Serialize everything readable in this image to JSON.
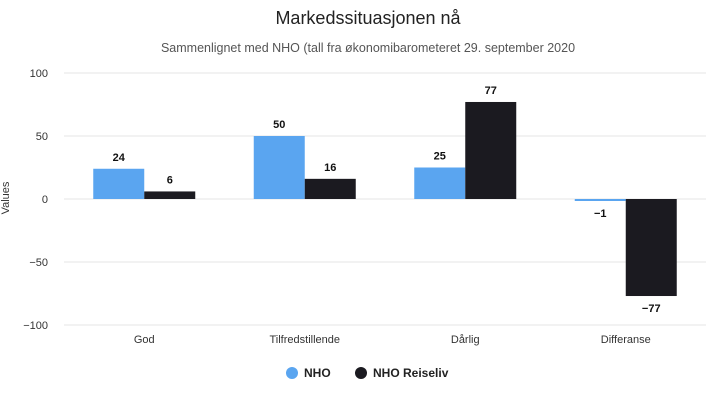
{
  "colors": {
    "nho": "#5aa5f0",
    "nho_reiseliv": "#1b1a20",
    "grid": "#e6e6e6"
  },
  "chart_data": {
    "type": "bar",
    "title": "Markedssituasjonen nå",
    "subtitle": "Sammenlignet med NHO (tall fra økonomibarometeret 29. september 2020",
    "xlabel": "",
    "ylabel": "Values",
    "ylim": [
      -100,
      100
    ],
    "yticks": [
      "100",
      "50",
      "0",
      "−50",
      "−100"
    ],
    "ytick_values": [
      100,
      50,
      0,
      -50,
      -100
    ],
    "categories": [
      "God",
      "Tilfredstillende",
      "Dårlig",
      "Differanse"
    ],
    "series": [
      {
        "name": "NHO",
        "values": [
          24,
          50,
          25,
          -1
        ],
        "labels": [
          "24",
          "50",
          "25",
          "−1"
        ]
      },
      {
        "name": "NHO Reiseliv",
        "values": [
          6,
          16,
          77,
          -77
        ],
        "labels": [
          "6",
          "16",
          "77",
          "−77"
        ]
      }
    ],
    "grid": true,
    "legend_position": "bottom"
  }
}
